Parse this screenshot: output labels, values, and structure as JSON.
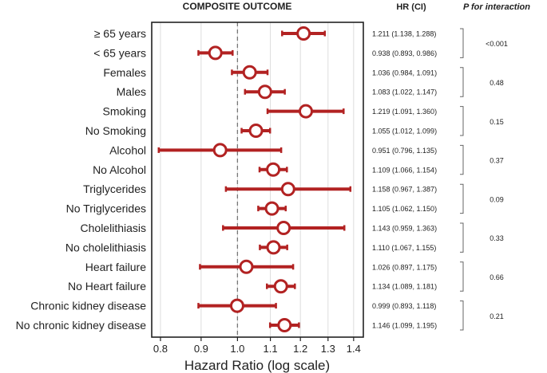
{
  "chart_data": {
    "type": "forest",
    "title": "COMPOSITE OUTCOME",
    "xlabel": "Hazard Ratio (log scale)",
    "x_scale": "log",
    "xlim": [
      0.78,
      1.44
    ],
    "x_ticks": [
      0.8,
      0.9,
      1.0,
      1.1,
      1.2,
      1.3,
      1.4
    ],
    "x_tick_labels": [
      "0.8",
      "0.9",
      "1.0",
      "1.1",
      "1.2",
      "1.3",
      "1.4"
    ],
    "reference_line": 1.0,
    "hr_header": "HR (CI)",
    "p_header": "P for interaction",
    "colors": {
      "marker": "#b22222",
      "reference": "#777777",
      "grid": "#dddddd"
    },
    "rows": [
      {
        "label": "≥ 65 years",
        "hr": 1.211,
        "lo": 1.138,
        "hi": 1.288,
        "hr_text": "1.211 (1.138, 1.288)"
      },
      {
        "label": "< 65 years",
        "hr": 0.938,
        "lo": 0.893,
        "hi": 0.986,
        "hr_text": "0.938 (0.893, 0.986)"
      },
      {
        "label": "Females",
        "hr": 1.036,
        "lo": 0.984,
        "hi": 1.091,
        "hr_text": "1.036 (0.984, 1.091)"
      },
      {
        "label": "Males",
        "hr": 1.083,
        "lo": 1.022,
        "hi": 1.147,
        "hr_text": "1.083 (1.022, 1.147)"
      },
      {
        "label": "Smoking",
        "hr": 1.219,
        "lo": 1.091,
        "hi": 1.36,
        "hr_text": "1.219 (1.091, 1.360)"
      },
      {
        "label": "No Smoking",
        "hr": 1.055,
        "lo": 1.012,
        "hi": 1.099,
        "hr_text": "1.055 (1.012, 1.099)"
      },
      {
        "label": "Alcohol",
        "hr": 0.951,
        "lo": 0.796,
        "hi": 1.135,
        "hr_text": "0.951 (0.796, 1.135)"
      },
      {
        "label": "No Alcohol",
        "hr": 1.109,
        "lo": 1.066,
        "hi": 1.154,
        "hr_text": "1.109 (1.066, 1.154)"
      },
      {
        "label": "Triglycerides",
        "hr": 1.158,
        "lo": 0.967,
        "hi": 1.387,
        "hr_text": "1.158 (0.967, 1.387)"
      },
      {
        "label": "No Triglycerides",
        "hr": 1.105,
        "lo": 1.062,
        "hi": 1.15,
        "hr_text": "1.105 (1.062, 1.150)"
      },
      {
        "label": "Cholelithiasis",
        "hr": 1.143,
        "lo": 0.959,
        "hi": 1.363,
        "hr_text": "1.143 (0.959, 1.363)"
      },
      {
        "label": "No cholelithiasis",
        "hr": 1.11,
        "lo": 1.067,
        "hi": 1.155,
        "hr_text": "1.110 (1.067, 1.155)"
      },
      {
        "label": "Heart failure",
        "hr": 1.026,
        "lo": 0.897,
        "hi": 1.175,
        "hr_text": "1.026 (0.897, 1.175)"
      },
      {
        "label": "No Heart failure",
        "hr": 1.134,
        "lo": 1.089,
        "hi": 1.181,
        "hr_text": "1.134 (1.089, 1.181)"
      },
      {
        "label": "Chronic kidney disease",
        "hr": 0.999,
        "lo": 0.893,
        "hi": 1.118,
        "hr_text": "0.999 (0.893, 1.118)"
      },
      {
        "label": "No chronic kidney disease",
        "hr": 1.146,
        "lo": 1.099,
        "hi": 1.195,
        "hr_text": "1.146 (1.099, 1.195)"
      }
    ],
    "p_values": [
      "<0.001",
      "0.48",
      "0.15",
      "0.37",
      "0.09",
      "0.33",
      "0.66",
      "0.21"
    ]
  }
}
